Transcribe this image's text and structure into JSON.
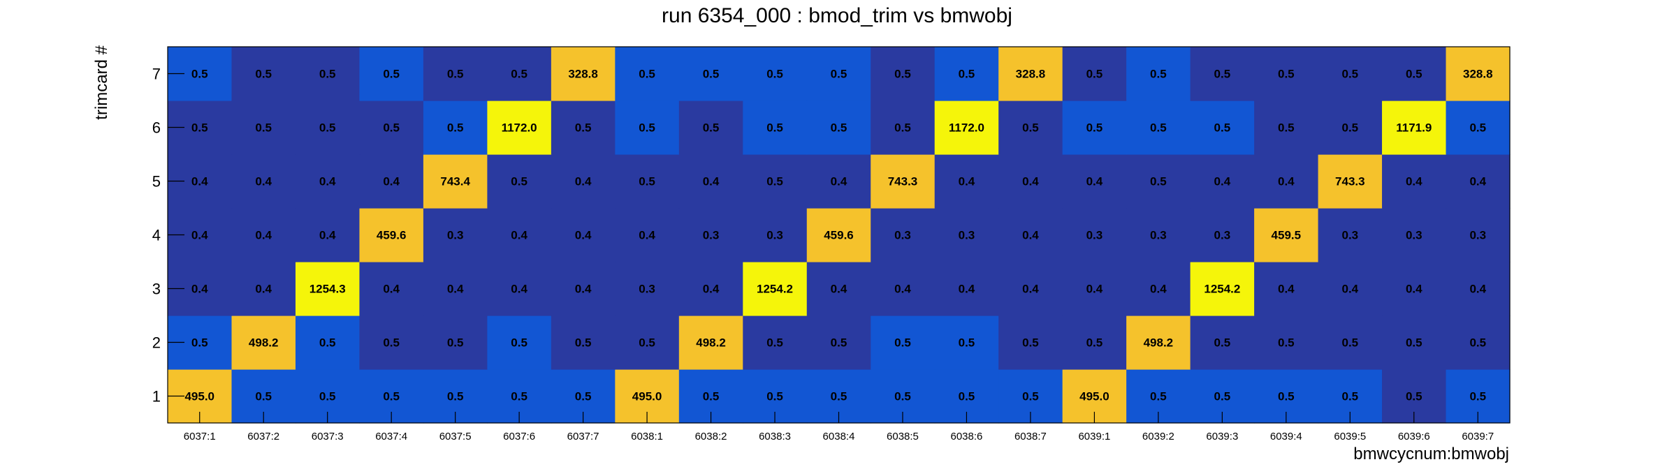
{
  "chart_data": {
    "type": "heatmap",
    "title": "run 6354_000 : bmod_trim vs bmwobj",
    "xlabel": "bmwcycnum:bmwobj",
    "ylabel": "trimcard #",
    "x_categories": [
      "6037:1",
      "6037:2",
      "6037:3",
      "6037:4",
      "6037:5",
      "6037:6",
      "6037:7",
      "6038:1",
      "6038:2",
      "6038:3",
      "6038:4",
      "6038:5",
      "6038:6",
      "6038:7",
      "6039:1",
      "6039:2",
      "6039:3",
      "6039:4",
      "6039:5",
      "6039:6",
      "6039:7"
    ],
    "y_categories": [
      "1",
      "2",
      "3",
      "4",
      "5",
      "6",
      "7"
    ],
    "values": [
      [
        "495.0",
        "0.5",
        "0.5",
        "0.5",
        "0.5",
        "0.5",
        "0.5",
        "495.0",
        "0.5",
        "0.5",
        "0.5",
        "0.5",
        "0.5",
        "0.5",
        "495.0",
        "0.5",
        "0.5",
        "0.5",
        "0.5",
        "0.5",
        "0.5"
      ],
      [
        "0.5",
        "498.2",
        "0.5",
        "0.5",
        "0.5",
        "0.5",
        "0.5",
        "0.5",
        "498.2",
        "0.5",
        "0.5",
        "0.5",
        "0.5",
        "0.5",
        "0.5",
        "498.2",
        "0.5",
        "0.5",
        "0.5",
        "0.5",
        "0.5"
      ],
      [
        "0.4",
        "0.4",
        "1254.3",
        "0.4",
        "0.4",
        "0.4",
        "0.4",
        "0.3",
        "0.4",
        "1254.2",
        "0.4",
        "0.4",
        "0.4",
        "0.4",
        "0.4",
        "0.4",
        "1254.2",
        "0.4",
        "0.4",
        "0.4",
        "0.4"
      ],
      [
        "0.4",
        "0.4",
        "0.4",
        "459.6",
        "0.3",
        "0.4",
        "0.4",
        "0.4",
        "0.3",
        "0.3",
        "459.6",
        "0.3",
        "0.3",
        "0.4",
        "0.3",
        "0.3",
        "0.3",
        "459.5",
        "0.3",
        "0.3",
        "0.3"
      ],
      [
        "0.4",
        "0.4",
        "0.4",
        "0.4",
        "743.4",
        "0.5",
        "0.4",
        "0.5",
        "0.4",
        "0.5",
        "0.4",
        "743.3",
        "0.4",
        "0.4",
        "0.4",
        "0.5",
        "0.4",
        "0.4",
        "743.3",
        "0.4",
        "0.4"
      ],
      [
        "0.5",
        "0.5",
        "0.5",
        "0.5",
        "0.5",
        "1172.0",
        "0.5",
        "0.5",
        "0.5",
        "0.5",
        "0.5",
        "0.5",
        "1172.0",
        "0.5",
        "0.5",
        "0.5",
        "0.5",
        "0.5",
        "0.5",
        "1171.9",
        "0.5"
      ],
      [
        "0.5",
        "0.5",
        "0.5",
        "0.5",
        "0.5",
        "0.5",
        "328.8",
        "0.5",
        "0.5",
        "0.5",
        "0.5",
        "0.5",
        "0.5",
        "328.8",
        "0.5",
        "0.5",
        "0.5",
        "0.5",
        "0.5",
        "0.5",
        "328.8"
      ]
    ],
    "colors": {
      "high": "#f5f50a",
      "mid": "#f5c22c",
      "low_light": "#1256d3",
      "low_dark": "#2a3aa0"
    },
    "cell_shade": [
      [
        "mid",
        "low_light",
        "low_light",
        "low_light",
        "low_light",
        "low_light",
        "low_light",
        "mid",
        "low_light",
        "low_light",
        "low_light",
        "low_light",
        "low_light",
        "low_light",
        "mid",
        "low_light",
        "low_light",
        "low_light",
        "low_light",
        "low_dark",
        "low_light"
      ],
      [
        "low_light",
        "mid",
        "low_light",
        "low_dark",
        "low_dark",
        "low_light",
        "low_dark",
        "low_dark",
        "mid",
        "low_dark",
        "low_dark",
        "low_light",
        "low_light",
        "low_dark",
        "low_dark",
        "mid",
        "low_dark",
        "low_dark",
        "low_dark",
        "low_dark",
        "low_dark"
      ],
      [
        "low_dark",
        "low_dark",
        "high",
        "low_dark",
        "low_dark",
        "low_dark",
        "low_dark",
        "low_dark",
        "low_dark",
        "high",
        "low_dark",
        "low_dark",
        "low_dark",
        "low_dark",
        "low_dark",
        "low_dark",
        "high",
        "low_dark",
        "low_dark",
        "low_dark",
        "low_dark"
      ],
      [
        "low_dark",
        "low_dark",
        "low_dark",
        "mid",
        "low_dark",
        "low_dark",
        "low_dark",
        "low_dark",
        "low_dark",
        "low_dark",
        "mid",
        "low_dark",
        "low_dark",
        "low_dark",
        "low_dark",
        "low_dark",
        "low_dark",
        "mid",
        "low_dark",
        "low_dark",
        "low_dark"
      ],
      [
        "low_dark",
        "low_dark",
        "low_dark",
        "low_dark",
        "mid",
        "low_dark",
        "low_dark",
        "low_dark",
        "low_dark",
        "low_dark",
        "low_dark",
        "mid",
        "low_dark",
        "low_dark",
        "low_dark",
        "low_dark",
        "low_dark",
        "low_dark",
        "mid",
        "low_dark",
        "low_dark"
      ],
      [
        "low_dark",
        "low_dark",
        "low_dark",
        "low_dark",
        "low_light",
        "high",
        "low_dark",
        "low_light",
        "low_dark",
        "low_light",
        "low_light",
        "low_dark",
        "high",
        "low_dark",
        "low_light",
        "low_light",
        "low_light",
        "low_dark",
        "low_dark",
        "high",
        "low_light"
      ],
      [
        "low_light",
        "low_dark",
        "low_dark",
        "low_light",
        "low_dark",
        "low_dark",
        "mid",
        "low_light",
        "low_light",
        "low_light",
        "low_light",
        "low_dark",
        "low_light",
        "mid",
        "low_dark",
        "low_light",
        "low_dark",
        "low_dark",
        "low_dark",
        "low_dark",
        "mid"
      ]
    ],
    "grid": false,
    "legend": "none"
  }
}
